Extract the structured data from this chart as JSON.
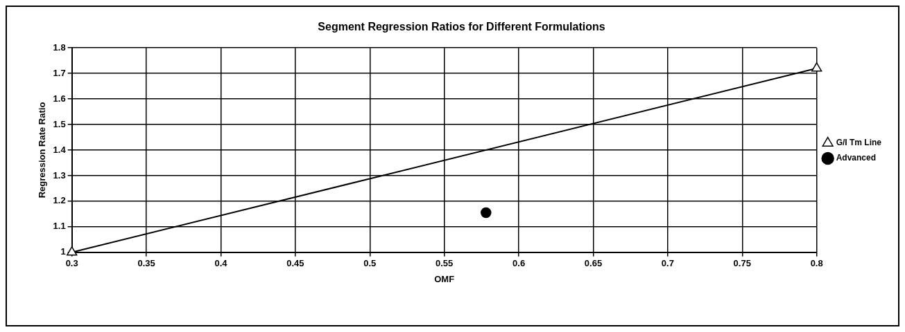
{
  "chart_data": {
    "type": "line",
    "title": "Segment Regression Ratios for Different Formulations",
    "xlabel": "OMF",
    "ylabel": "Regression Rate Ratio",
    "xlim": [
      0.3,
      0.8
    ],
    "xticks": [
      0.3,
      0.35,
      0.4,
      0.45,
      0.5,
      0.55,
      0.6,
      0.65,
      0.7,
      0.75,
      0.8
    ],
    "ylim": [
      1,
      1.8
    ],
    "yticks": [
      1,
      1.1,
      1.2,
      1.3,
      1.4,
      1.5,
      1.6,
      1.7,
      1.8
    ],
    "series": [
      {
        "name": "G/I Tm Line",
        "color": "#000000",
        "x": [
          0.3,
          0.8
        ],
        "values": [
          1,
          1.72
        ],
        "marker": "triangle"
      },
      {
        "name": "Advanced",
        "type": "scatter",
        "color": "#000000",
        "x": [
          0.578
        ],
        "values": [
          1.155
        ],
        "marker": "circle"
      }
    ],
    "grid": true,
    "legend": "right"
  }
}
